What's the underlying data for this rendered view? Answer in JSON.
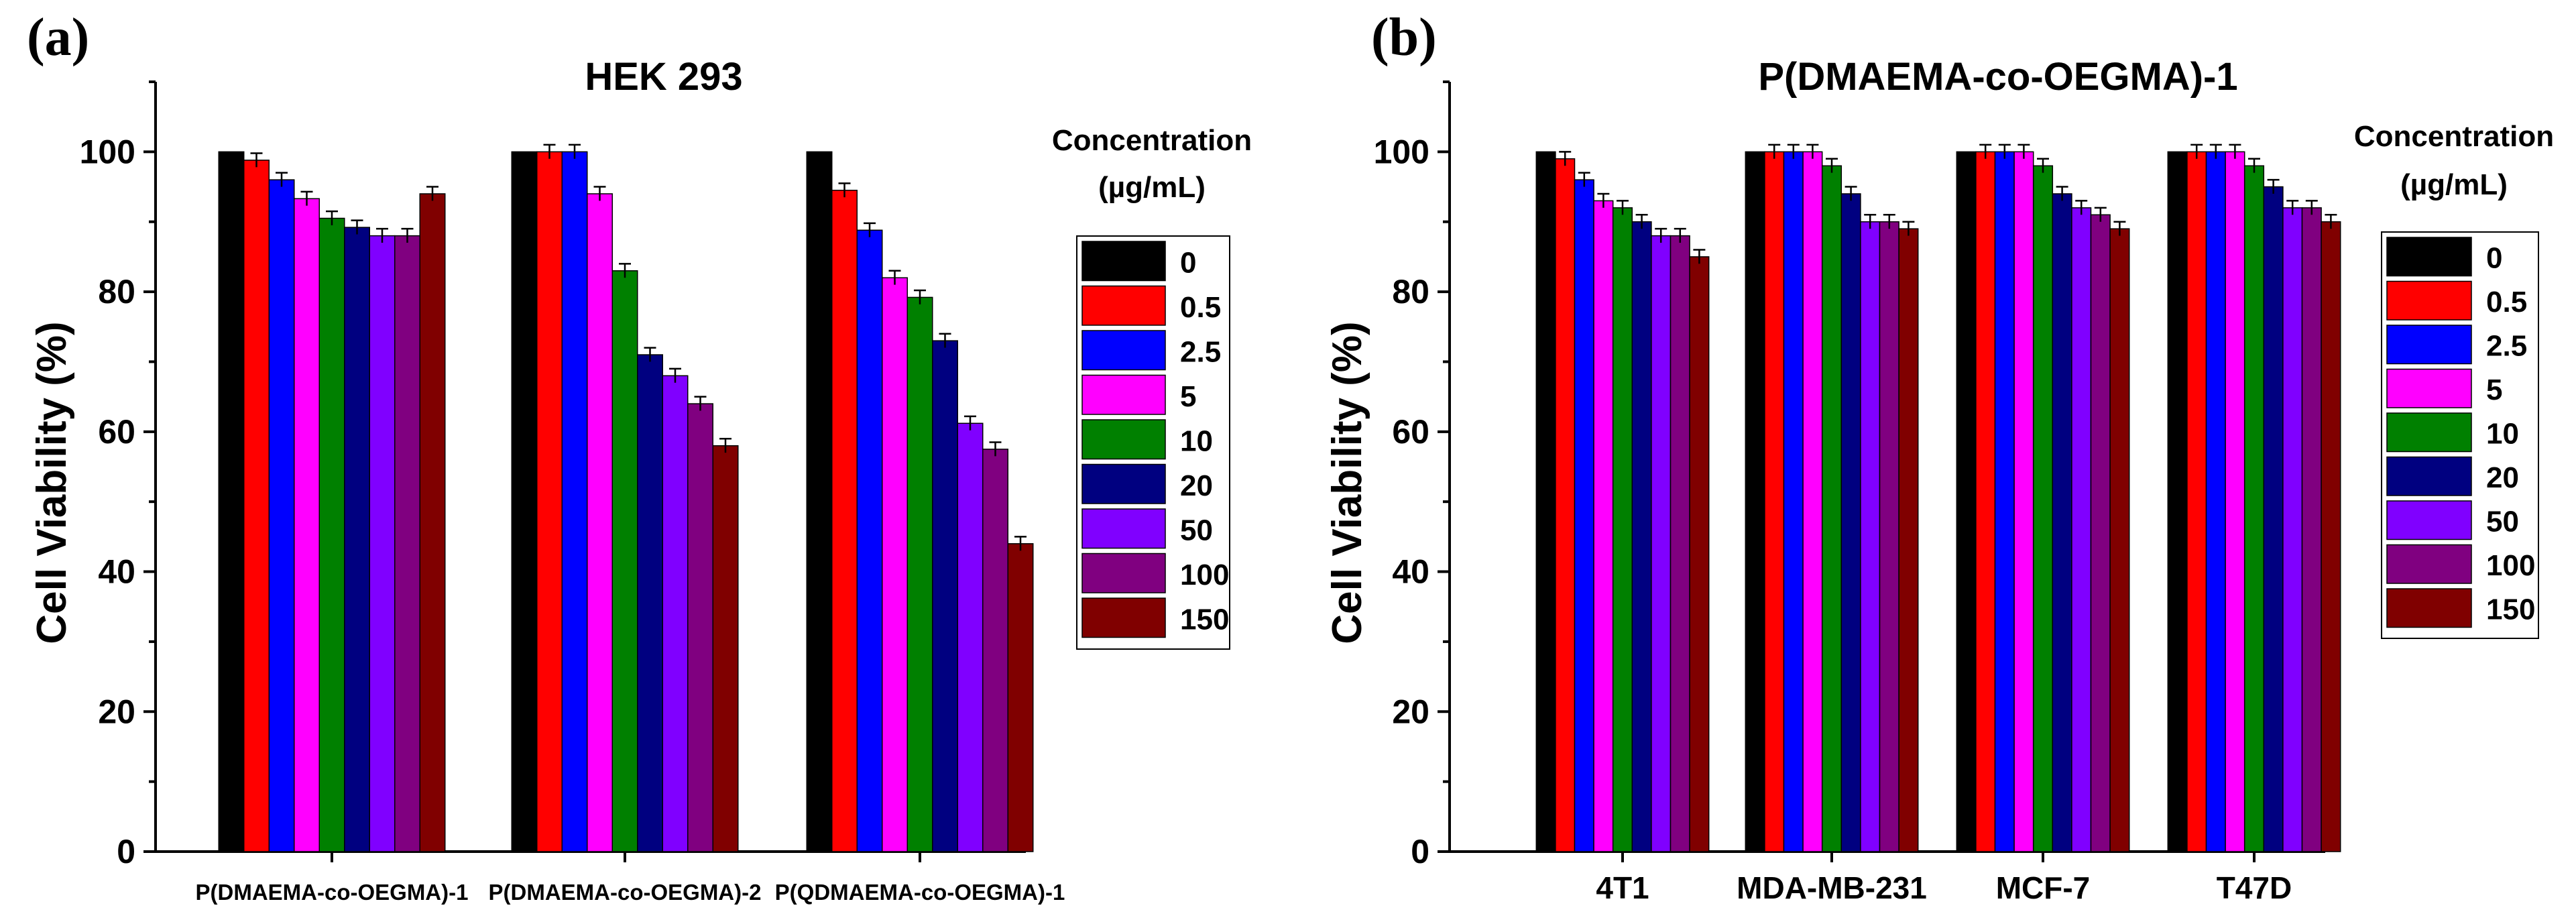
{
  "legend": {
    "title_line1": "Concentration",
    "title_line2": "(µg/mL)",
    "labels": [
      "0",
      "0.5",
      "2.5",
      "5",
      "10",
      "20",
      "50",
      "100",
      "150"
    ],
    "colors": [
      "#000000",
      "#ff0000",
      "#0000ff",
      "#ff00ff",
      "#008000",
      "#000080",
      "#8000ff",
      "#800080",
      "#800000"
    ]
  },
  "chart_data": [
    {
      "panel": "(a)",
      "type": "bar",
      "title": "HEK 293",
      "xlabel": "",
      "ylabel": "Cell Viability (%)",
      "ylim": [
        0,
        110
      ],
      "yticks": [
        0,
        20,
        40,
        60,
        80,
        100
      ],
      "categories": [
        "P(DMAEMA-co-OEGMA)-1",
        "P(DMAEMA-co-OEGMA)-2",
        "P(QDMAEMA-co-OEGMA)-1"
      ],
      "series": [
        {
          "name": "0",
          "values": [
            100,
            100,
            100
          ],
          "errors": [
            0,
            0,
            0
          ]
        },
        {
          "name": "0.5",
          "values": [
            98.8,
            100,
            94.5
          ],
          "errors": [
            1.0,
            1.0,
            1.0
          ]
        },
        {
          "name": "2.5",
          "values": [
            96,
            100,
            88.8
          ],
          "errors": [
            1.0,
            1.0,
            1.0
          ]
        },
        {
          "name": "5",
          "values": [
            93.3,
            94,
            82
          ],
          "errors": [
            1.0,
            1.0,
            1.0
          ]
        },
        {
          "name": "10",
          "values": [
            90.5,
            83,
            79.2
          ],
          "errors": [
            1.0,
            1.0,
            1.0
          ]
        },
        {
          "name": "20",
          "values": [
            89.2,
            71,
            73
          ],
          "errors": [
            1.0,
            1.0,
            1.0
          ]
        },
        {
          "name": "50",
          "values": [
            88,
            68,
            61.2
          ],
          "errors": [
            1.0,
            1.0,
            1.0
          ]
        },
        {
          "name": "100",
          "values": [
            88,
            64,
            57.5
          ],
          "errors": [
            1.0,
            1.0,
            1.0
          ]
        },
        {
          "name": "150",
          "values": [
            94,
            58,
            44
          ],
          "errors": [
            1.0,
            1.0,
            1.0
          ]
        }
      ]
    },
    {
      "panel": "(b)",
      "type": "bar",
      "title": "P(DMAEMA-co-OEGMA)-1",
      "xlabel": "",
      "ylabel": "Cell Viability (%)",
      "ylim": [
        0,
        110
      ],
      "yticks": [
        0,
        20,
        40,
        60,
        80,
        100
      ],
      "categories": [
        "4T1",
        "MDA-MB-231",
        "MCF-7",
        "T47D"
      ],
      "series": [
        {
          "name": "0",
          "values": [
            100,
            100,
            100,
            100
          ],
          "errors": [
            0,
            0,
            0,
            0
          ]
        },
        {
          "name": "0.5",
          "values": [
            99,
            100,
            100,
            100
          ],
          "errors": [
            1.0,
            1.0,
            1.0,
            1.0
          ]
        },
        {
          "name": "2.5",
          "values": [
            96,
            100,
            100,
            100
          ],
          "errors": [
            1.0,
            1.0,
            1.0,
            1.0
          ]
        },
        {
          "name": "5",
          "values": [
            93,
            100,
            100,
            100
          ],
          "errors": [
            1.0,
            1.0,
            1.0,
            1.0
          ]
        },
        {
          "name": "10",
          "values": [
            92,
            98,
            98,
            98
          ],
          "errors": [
            1.0,
            1.0,
            1.0,
            1.0
          ]
        },
        {
          "name": "20",
          "values": [
            90,
            94,
            94,
            95
          ],
          "errors": [
            1.0,
            1.0,
            1.0,
            1.0
          ]
        },
        {
          "name": "50",
          "values": [
            88,
            90,
            92,
            92
          ],
          "errors": [
            1.0,
            1.0,
            1.0,
            1.0
          ]
        },
        {
          "name": "100",
          "values": [
            88,
            90,
            91,
            92
          ],
          "errors": [
            1.0,
            1.0,
            1.0,
            1.0
          ]
        },
        {
          "name": "150",
          "values": [
            85,
            89,
            89,
            90
          ],
          "errors": [
            1.0,
            1.0,
            1.0,
            1.0
          ]
        }
      ]
    }
  ]
}
